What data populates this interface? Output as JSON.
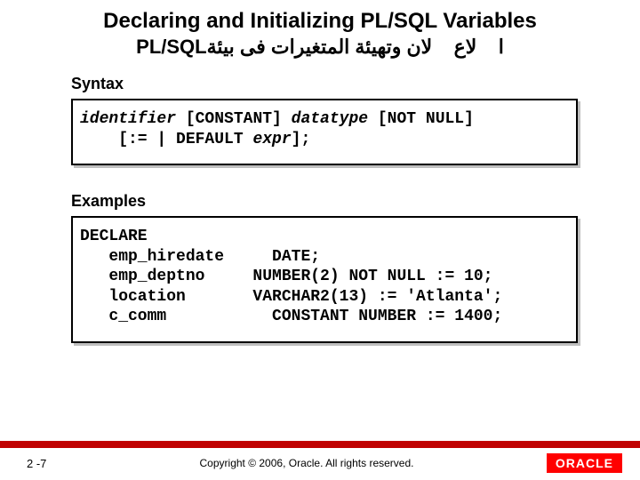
{
  "title": {
    "en": "Declaring and Initializing PL/SQL Variables",
    "ar": "ا    لاع    لان وتهيئة المتغيرات فى بيئةPL/SQL"
  },
  "syntax": {
    "label": "Syntax",
    "line1_identifier": "identifier",
    "line1_const": " [CONSTANT] ",
    "line1_datatype": "datatype",
    "line1_notnull": " [NOT NULL]",
    "line2_prefix": "    [:= | DEFAULT ",
    "line2_expr": "expr",
    "line2_suffix": "];"
  },
  "examples": {
    "label": "Examples",
    "l1": "DECLARE",
    "l2": "   emp_hiredate     DATE;",
    "l3": "   emp_deptno     NUMBER(2) NOT NULL := 10;",
    "l4": "   location       VARCHAR2(13) := 'Atlanta';",
    "l5": "   c_comm           CONSTANT NUMBER := 1400;"
  },
  "footer": {
    "page": "2 -7",
    "copyright": "Copyright © 2006, Oracle.  All rights reserved.",
    "logo_text": "ORACLE"
  },
  "colors": {
    "bar": "#c00000",
    "logo_bg": "#ff0000"
  }
}
